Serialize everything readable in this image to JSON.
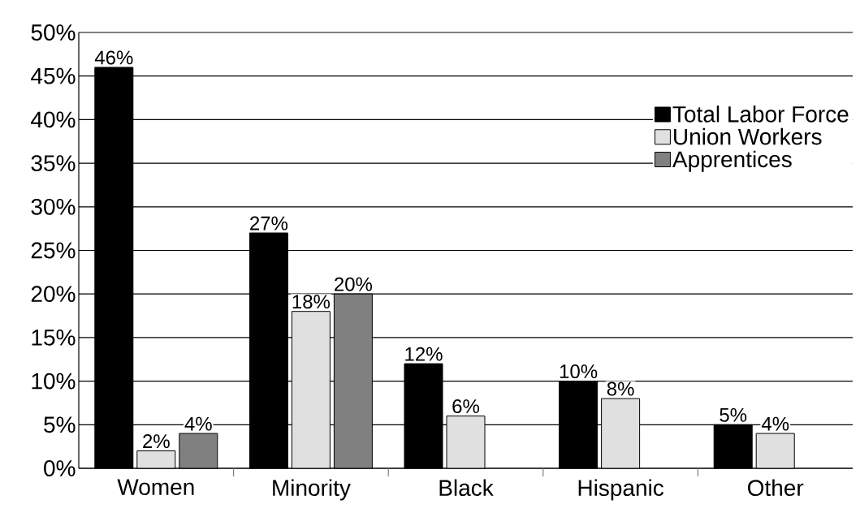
{
  "chart_data": {
    "type": "bar",
    "categories": [
      "Women",
      "Minority",
      "Black",
      "Hispanic",
      "Other"
    ],
    "series": [
      {
        "name": "Total Labor Force",
        "color": "#000000",
        "values": [
          46,
          27,
          12,
          10,
          5
        ],
        "value_labels": [
          "46%",
          "27%",
          "12%",
          "10%",
          "5%"
        ]
      },
      {
        "name": "Union Workers",
        "color": "#e0e0e0",
        "values": [
          2,
          18,
          6,
          8,
          4
        ],
        "value_labels": [
          "2%",
          "18%",
          "6%",
          "8%",
          "4%"
        ]
      },
      {
        "name": "Apprentices",
        "color": "#808080",
        "values": [
          4,
          20,
          null,
          null,
          null
        ],
        "value_labels": [
          "4%",
          "20%",
          null,
          null,
          null
        ]
      }
    ],
    "ylim": [
      0,
      50
    ],
    "yticks": [
      {
        "value": 0,
        "label": "0%"
      },
      {
        "value": 5,
        "label": "5%"
      },
      {
        "value": 10,
        "label": "10%"
      },
      {
        "value": 15,
        "label": "15%"
      },
      {
        "value": 20,
        "label": "20%"
      },
      {
        "value": 25,
        "label": "25%"
      },
      {
        "value": 30,
        "label": "30%"
      },
      {
        "value": 35,
        "label": "35%"
      },
      {
        "value": 40,
        "label": "40%"
      },
      {
        "value": 45,
        "label": "45%"
      },
      {
        "value": 50,
        "label": "50%"
      }
    ],
    "grid": "y",
    "legend": "top right"
  }
}
